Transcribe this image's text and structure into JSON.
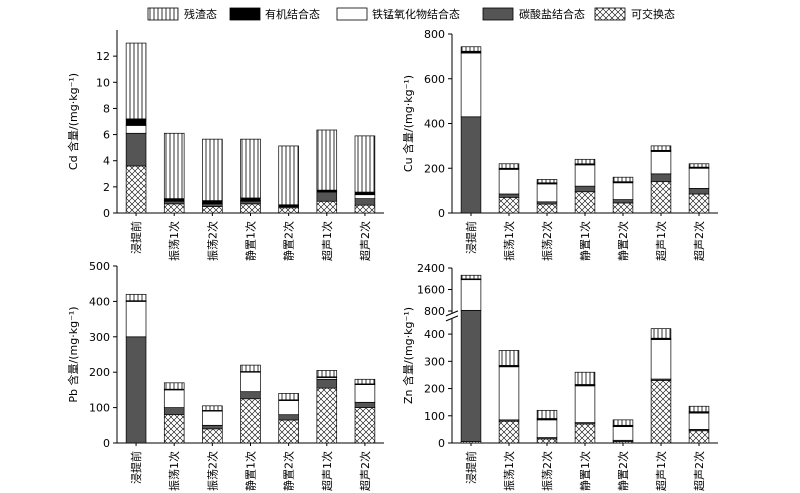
{
  "legend": [
    {
      "key": "residual",
      "label": "残渣态",
      "pattern": "vlines"
    },
    {
      "key": "organic",
      "label": "有机结合态",
      "pattern": "black"
    },
    {
      "key": "femn",
      "label": "铁锰氧化物结合态",
      "pattern": "white"
    },
    {
      "key": "carbonate",
      "label": "碳酸盐结合态",
      "pattern": "gray"
    },
    {
      "key": "exchangeable",
      "label": "可交换态",
      "pattern": "cross"
    }
  ],
  "colors": {
    "gray": "#555555",
    "black": "#000000",
    "white": "#ffffff",
    "line": "#000000"
  },
  "chart_data": [
    {
      "type": "bar",
      "stacked": true,
      "element": "Cd",
      "ylabel": "Cd 含量/(mg·kg⁻¹)",
      "ylim": [
        0,
        14
      ],
      "yticks": [
        0,
        2,
        4,
        6,
        8,
        10,
        12
      ],
      "ytick_labels": [
        "0",
        "2",
        "4",
        "6",
        "8",
        "10",
        "12"
      ],
      "categories": [
        "浸提前",
        "振荡1次",
        "振荡2次",
        "静置1次",
        "静置2次",
        "超声1次",
        "超声2次"
      ],
      "series": [
        {
          "name": "可交换态",
          "key": "exchangeable",
          "values": [
            3.6,
            0.7,
            0.5,
            0.7,
            0.4,
            0.9,
            0.6
          ]
        },
        {
          "name": "碳酸盐结合态",
          "key": "carbonate",
          "values": [
            2.5,
            0.2,
            0.2,
            0.2,
            0.1,
            0.7,
            0.5
          ]
        },
        {
          "name": "铁锰氧化物结合态",
          "key": "femn",
          "values": [
            0.6,
            0.05,
            0.05,
            0.05,
            0.03,
            0.05,
            0.3
          ]
        },
        {
          "name": "有机结合态",
          "key": "organic",
          "values": [
            0.5,
            0.15,
            0.2,
            0.2,
            0.1,
            0.1,
            0.2
          ]
        },
        {
          "name": "残渣态",
          "key": "residual",
          "values": [
            5.8,
            5.0,
            4.7,
            4.5,
            4.5,
            4.6,
            4.3
          ]
        }
      ]
    },
    {
      "type": "bar",
      "stacked": true,
      "element": "Cu",
      "ylabel": "Cu 含量/(mg·kg⁻¹)",
      "ylim": [
        0,
        800
      ],
      "yticks": [
        0,
        200,
        400,
        600,
        800
      ],
      "ytick_labels": [
        "0",
        "200",
        "400",
        "600",
        "800"
      ],
      "categories": [
        "浸提前",
        "振荡1次",
        "振荡2次",
        "静置1次",
        "静置2次",
        "超声1次",
        "超声2次"
      ],
      "series": [
        {
          "name": "可交换态",
          "key": "exchangeable",
          "values": [
            0,
            70,
            40,
            95,
            45,
            140,
            85
          ]
        },
        {
          "name": "碳酸盐结合态",
          "key": "carbonate",
          "values": [
            430,
            15,
            10,
            25,
            15,
            35,
            25
          ]
        },
        {
          "name": "铁锰氧化物结合态",
          "key": "femn",
          "values": [
            285,
            110,
            80,
            95,
            75,
            100,
            90
          ]
        },
        {
          "name": "有机结合态",
          "key": "organic",
          "values": [
            8,
            5,
            5,
            5,
            5,
            5,
            5
          ]
        },
        {
          "name": "残渣态",
          "key": "residual",
          "values": [
            20,
            20,
            15,
            20,
            20,
            20,
            15
          ]
        }
      ]
    },
    {
      "type": "bar",
      "stacked": true,
      "element": "Pb",
      "ylabel": "Pb 含量/(mg·kg⁻¹)",
      "ylim": [
        0,
        500
      ],
      "yticks": [
        0,
        100,
        200,
        300,
        400,
        500
      ],
      "ytick_labels": [
        "0",
        "100",
        "200",
        "300",
        "400",
        "500"
      ],
      "categories": [
        "浸提前",
        "振荡1次",
        "振荡2次",
        "静置1次",
        "静置2次",
        "超声1次",
        "超声2次"
      ],
      "series": [
        {
          "name": "可交换态",
          "key": "exchangeable",
          "values": [
            0,
            80,
            40,
            125,
            65,
            155,
            100
          ]
        },
        {
          "name": "碳酸盐结合态",
          "key": "carbonate",
          "values": [
            300,
            20,
            10,
            20,
            15,
            25,
            15
          ]
        },
        {
          "name": "铁锰氧化物结合态",
          "key": "femn",
          "values": [
            100,
            50,
            40,
            55,
            40,
            5,
            50
          ]
        },
        {
          "name": "有机结合态",
          "key": "organic",
          "values": [
            2,
            2,
            2,
            2,
            2,
            2,
            2
          ]
        },
        {
          "name": "残渣态",
          "key": "residual",
          "values": [
            18,
            18,
            13,
            18,
            18,
            18,
            13
          ]
        }
      ]
    },
    {
      "type": "bar",
      "stacked": true,
      "element": "Zn",
      "broken_axis": true,
      "ylabel": "Zn 含量/(mg·kg⁻¹)",
      "ylim": [
        0,
        2400
      ],
      "yticks": [
        0,
        100,
        200,
        300,
        400,
        800,
        1600,
        2400
      ],
      "ytick_labels": [
        "0",
        "100",
        "200",
        "300",
        "400",
        "800",
        "1600",
        "2400"
      ],
      "categories": [
        "浸提前",
        "振荡1次",
        "振荡2次",
        "静置1次",
        "静置2次",
        "超声1次",
        "超声2次"
      ],
      "series": [
        {
          "name": "可交换态",
          "key": "exchangeable",
          "values": [
            5,
            80,
            15,
            70,
            5,
            230,
            45
          ]
        },
        {
          "name": "碳酸盐结合态",
          "key": "carbonate",
          "values": [
            820,
            5,
            5,
            5,
            5,
            5,
            5
          ]
        },
        {
          "name": "铁锰氧化物结合态",
          "key": "femn",
          "values": [
            1140,
            195,
            65,
            135,
            50,
            145,
            60
          ]
        },
        {
          "name": "有机结合态",
          "key": "organic",
          "values": [
            30,
            5,
            5,
            5,
            5,
            5,
            5
          ]
        },
        {
          "name": "残渣态",
          "key": "residual",
          "values": [
            135,
            55,
            30,
            45,
            20,
            35,
            20
          ]
        }
      ]
    }
  ]
}
